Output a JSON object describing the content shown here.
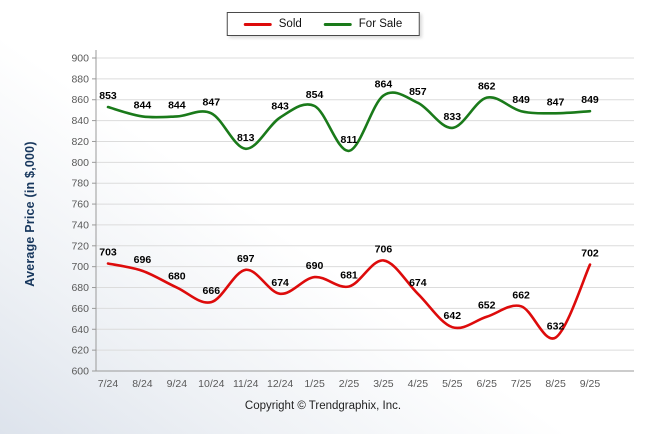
{
  "footer": {
    "copyright": "Copyright © Trendgraphix, Inc."
  },
  "chart_data": {
    "type": "line",
    "title": "",
    "xlabel": "",
    "ylabel": "Average Price (in $,000)",
    "categories": [
      "7/24",
      "8/24",
      "9/24",
      "10/24",
      "11/24",
      "12/24",
      "1/25",
      "2/25",
      "3/25",
      "4/25",
      "5/25",
      "6/25",
      "7/25",
      "8/25",
      "9/25"
    ],
    "series": [
      {
        "name": "Sold",
        "color": "#dd0b0b",
        "values": [
          703,
          696,
          680,
          666,
          697,
          674,
          690,
          681,
          706,
          674,
          642,
          652,
          662,
          632,
          702
        ]
      },
      {
        "name": "For Sale",
        "color": "#1a7a1a",
        "values": [
          853,
          844,
          844,
          847,
          813,
          843,
          854,
          811,
          864,
          857,
          833,
          862,
          849,
          847,
          849
        ]
      }
    ],
    "ylim": [
      600,
      900
    ],
    "ytick_step": 20,
    "grid": true,
    "legend_position": "top-center",
    "value_labels": true
  }
}
